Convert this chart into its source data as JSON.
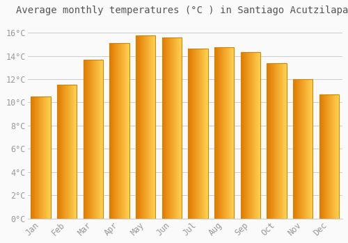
{
  "title": "Average monthly temperatures (°C ) in Santiago Acutzilapan",
  "months": [
    "Jan",
    "Feb",
    "Mar",
    "Apr",
    "May",
    "Jun",
    "Jul",
    "Aug",
    "Sep",
    "Oct",
    "Nov",
    "Dec"
  ],
  "values": [
    10.5,
    11.55,
    13.7,
    15.1,
    15.8,
    15.6,
    14.65,
    14.75,
    14.35,
    13.4,
    12.0,
    10.7
  ],
  "bar_color_dark": "#E07800",
  "bar_color_mid": "#FFA500",
  "bar_color_light": "#FFD050",
  "background_color": "#FAFAFA",
  "grid_color": "#CCCCCC",
  "text_color": "#999999",
  "title_color": "#555555",
  "ylim": [
    0,
    17
  ],
  "yticks": [
    0,
    2,
    4,
    6,
    8,
    10,
    12,
    14,
    16
  ],
  "ytick_labels": [
    "0°C",
    "2°C",
    "4°C",
    "6°C",
    "8°C",
    "10°C",
    "12°C",
    "14°C",
    "16°C"
  ],
  "title_fontsize": 10,
  "tick_fontsize": 8.5
}
